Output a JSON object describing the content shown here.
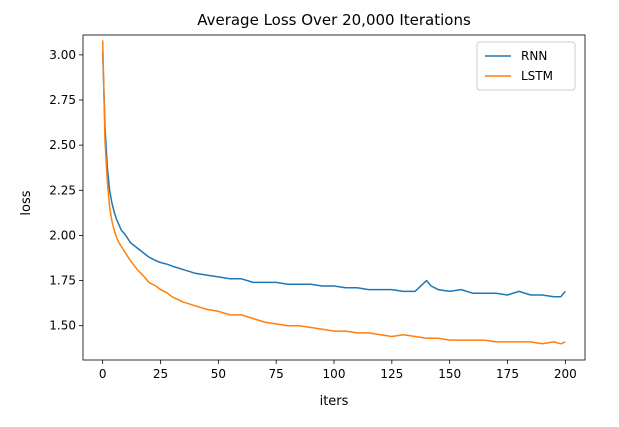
{
  "chart_data": {
    "type": "line",
    "title": "Average Loss Over 20,000 Iterations",
    "xlabel": "iters",
    "ylabel": "loss",
    "xlim": [
      -8.5,
      208.5
    ],
    "ylim": [
      1.31,
      3.11
    ],
    "xticks": [
      0,
      25,
      50,
      75,
      100,
      125,
      150,
      175,
      200
    ],
    "yticks": [
      1.5,
      1.75,
      2.0,
      2.25,
      2.5,
      2.75,
      3.0
    ],
    "ytick_labels": [
      "1.50",
      "1.75",
      "2.00",
      "2.25",
      "2.50",
      "2.75",
      "3.00"
    ],
    "grid": false,
    "legend_position": "top-right",
    "series": [
      {
        "name": "RNN",
        "color": "#1f77b4",
        "x": [
          0,
          1,
          2,
          3,
          4,
          5,
          6,
          7,
          8,
          10,
          12,
          15,
          18,
          20,
          23,
          25,
          28,
          30,
          35,
          40,
          45,
          50,
          55,
          60,
          65,
          70,
          75,
          80,
          85,
          90,
          95,
          100,
          105,
          110,
          115,
          120,
          125,
          130,
          135,
          140,
          142,
          145,
          150,
          155,
          160,
          165,
          170,
          175,
          180,
          185,
          190,
          195,
          198,
          200
        ],
        "y": [
          3.02,
          2.6,
          2.38,
          2.25,
          2.18,
          2.13,
          2.09,
          2.06,
          2.03,
          2.0,
          1.96,
          1.93,
          1.9,
          1.88,
          1.86,
          1.85,
          1.84,
          1.83,
          1.81,
          1.79,
          1.78,
          1.77,
          1.76,
          1.76,
          1.74,
          1.74,
          1.74,
          1.73,
          1.73,
          1.73,
          1.72,
          1.72,
          1.71,
          1.71,
          1.7,
          1.7,
          1.7,
          1.69,
          1.69,
          1.75,
          1.72,
          1.7,
          1.69,
          1.7,
          1.68,
          1.68,
          1.68,
          1.67,
          1.69,
          1.67,
          1.67,
          1.66,
          1.66,
          1.69
        ]
      },
      {
        "name": "LSTM",
        "color": "#ff7f0e",
        "x": [
          0,
          1,
          2,
          3,
          4,
          5,
          6,
          7,
          8,
          10,
          12,
          15,
          18,
          20,
          23,
          25,
          28,
          30,
          35,
          40,
          45,
          50,
          55,
          60,
          65,
          70,
          75,
          80,
          85,
          90,
          95,
          100,
          105,
          110,
          115,
          120,
          125,
          130,
          135,
          140,
          145,
          150,
          155,
          160,
          165,
          170,
          175,
          180,
          185,
          190,
          195,
          198,
          200
        ],
        "y": [
          3.08,
          2.52,
          2.3,
          2.16,
          2.08,
          2.03,
          1.99,
          1.96,
          1.94,
          1.9,
          1.86,
          1.81,
          1.77,
          1.74,
          1.72,
          1.7,
          1.68,
          1.66,
          1.63,
          1.61,
          1.59,
          1.58,
          1.56,
          1.56,
          1.54,
          1.52,
          1.51,
          1.5,
          1.5,
          1.49,
          1.48,
          1.47,
          1.47,
          1.46,
          1.46,
          1.45,
          1.44,
          1.45,
          1.44,
          1.43,
          1.43,
          1.42,
          1.42,
          1.42,
          1.42,
          1.41,
          1.41,
          1.41,
          1.41,
          1.4,
          1.41,
          1.4,
          1.41
        ]
      }
    ]
  }
}
